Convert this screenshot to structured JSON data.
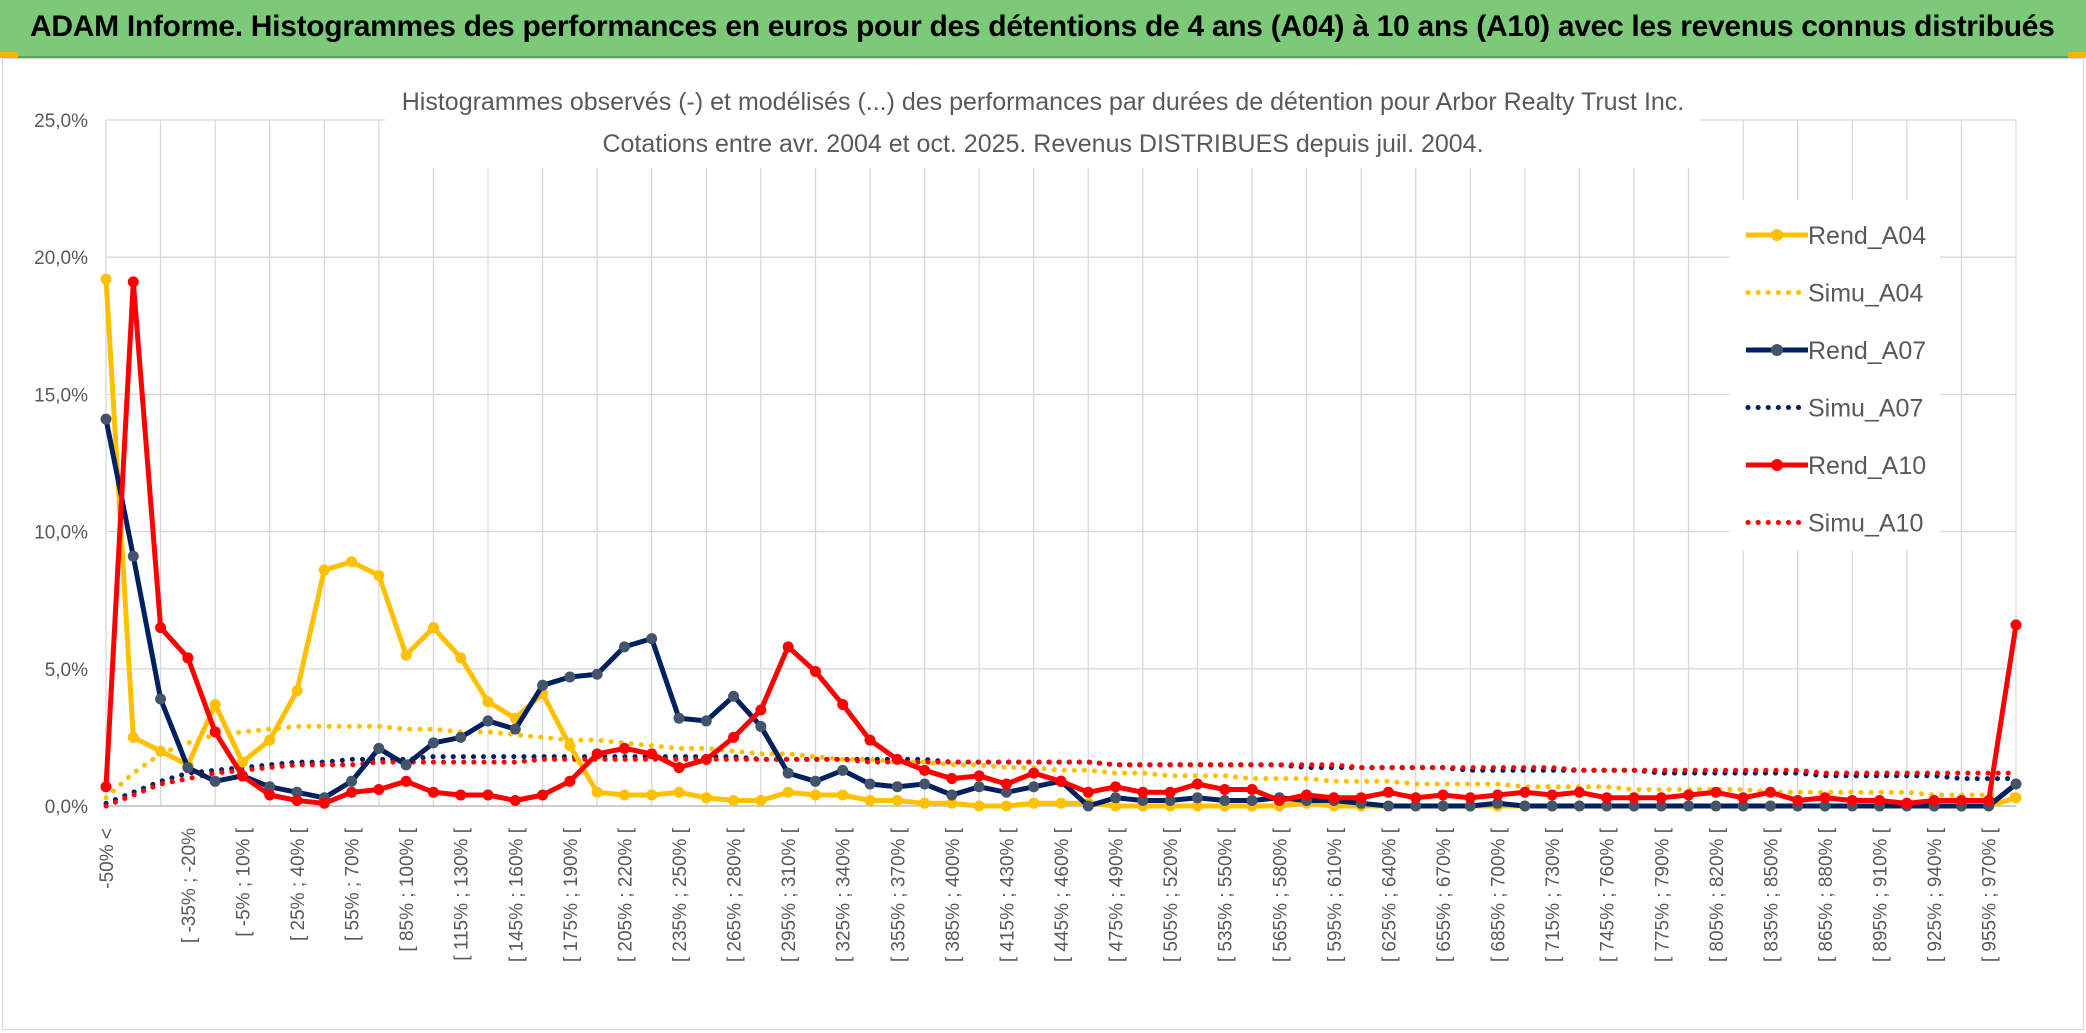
{
  "header": {
    "title": "ADAM Informe. Histogrammes des performances en euros pour des détentions de 4 ans (A04) à 10 ans (A10) avec les revenus connus distribués"
  },
  "colors": {
    "banner": "#7dc97a",
    "a04": "#FFC000",
    "a07": "#002060",
    "a10": "#FF0000",
    "grid": "#d9d9d9"
  },
  "chart_data": {
    "type": "line",
    "title": "Histogrammes observés (-) et modélisés (...) des performances par durées de détention pour Arbor Realty Trust Inc.",
    "subtitle": "Cotations entre avr. 2004 et oct. 2025. Revenus DISTRIBUES depuis juil. 2004.",
    "y_ticks": [
      "0,0%",
      "5,0%",
      "10,0%",
      "15,0%",
      "20,0%",
      "25,0%"
    ],
    "ylim": [
      0,
      25
    ],
    "x_labels": [
      "-50% <",
      "[ -35% ; -20%",
      "[ -5% ; 10% [",
      "[ 25% ; 40% [",
      "[ 55% ; 70% [",
      "[ 85% ; 100% [",
      "[ 115% ; 130% [",
      "[ 145% ; 160% [",
      "[ 175% ; 190% [",
      "[ 205% ; 220% [",
      "[ 235% ; 250% [",
      "[ 265% ; 280% [",
      "[ 295% ; 310% [",
      "[ 325% ; 340% [",
      "[ 355% ; 370% [",
      "[ 385% ; 400% [",
      "[ 415% ; 430% [",
      "[ 445% ; 460% [",
      "[ 475% ; 490% [",
      "[ 505% ; 520% [",
      "[ 535% ; 550% [",
      "[ 565% ; 580% [",
      "[ 595% ; 610% [",
      "[ 625% ; 640% [",
      "[ 655% ; 670% [",
      "[ 685% ; 700% [",
      "[ 715% ; 730% [",
      "[ 745% ; 760% [",
      "[ 775% ; 790% [",
      "[ 805% ; 820% [",
      "[ 835% ; 850% [",
      "[ 865% ; 880% [",
      "[ 895% ; 910% [",
      "[ 925% ; 940% [",
      "[ 955% ; 970% ["
    ],
    "legend_position": "right",
    "series": [
      {
        "name": "Rend_A04",
        "style": "solid",
        "color": "#FFC000",
        "values": [
          19.2,
          2.5,
          2.0,
          1.5,
          3.7,
          1.6,
          2.4,
          4.2,
          8.6,
          8.9,
          8.4,
          5.5,
          6.5,
          5.4,
          3.8,
          3.2,
          4.1,
          2.2,
          0.5,
          0.4,
          0.4,
          0.5,
          0.3,
          0.2,
          0.2,
          0.5,
          0.4,
          0.4,
          0.2,
          0.2,
          0.1,
          0.1,
          0.0,
          0.0,
          0.1,
          0.1,
          0.1,
          0.0,
          0.0,
          0.0,
          0.0,
          0.0,
          0.0,
          0.0,
          0.1,
          0.0,
          0.0,
          0.0,
          0.0,
          0.0,
          0.0,
          0.0,
          0.0,
          0.0,
          0.0,
          0.0,
          0.0,
          0.0,
          0.0,
          0.0,
          0.0,
          0.0,
          0.0,
          0.0,
          0.0,
          0.0,
          0.0,
          0.0,
          0.0,
          0.0,
          0.3
        ]
      },
      {
        "name": "Simu_A04",
        "style": "dotted",
        "color": "#FFC000",
        "values": [
          0.3,
          1.2,
          1.9,
          2.3,
          2.6,
          2.7,
          2.8,
          2.9,
          2.9,
          2.9,
          2.9,
          2.8,
          2.8,
          2.7,
          2.7,
          2.6,
          2.5,
          2.4,
          2.4,
          2.3,
          2.2,
          2.1,
          2.1,
          2.0,
          1.9,
          1.9,
          1.8,
          1.7,
          1.7,
          1.6,
          1.6,
          1.5,
          1.5,
          1.4,
          1.4,
          1.3,
          1.3,
          1.2,
          1.2,
          1.1,
          1.1,
          1.1,
          1.0,
          1.0,
          1.0,
          0.9,
          0.9,
          0.9,
          0.8,
          0.8,
          0.8,
          0.8,
          0.7,
          0.7,
          0.7,
          0.7,
          0.6,
          0.6,
          0.6,
          0.6,
          0.6,
          0.5,
          0.5,
          0.5,
          0.5,
          0.5,
          0.5,
          0.4,
          0.4,
          0.4,
          0.4
        ]
      },
      {
        "name": "Rend_A07",
        "style": "solid",
        "color": "#002060",
        "values": [
          14.1,
          9.1,
          3.9,
          1.4,
          0.9,
          1.1,
          0.7,
          0.5,
          0.3,
          0.9,
          2.1,
          1.5,
          2.3,
          2.5,
          3.1,
          2.8,
          4.4,
          4.7,
          4.8,
          5.8,
          6.1,
          3.2,
          3.1,
          4.0,
          2.9,
          1.2,
          0.9,
          1.3,
          0.8,
          0.7,
          0.8,
          0.4,
          0.7,
          0.5,
          0.7,
          0.9,
          0.0,
          0.3,
          0.2,
          0.2,
          0.3,
          0.2,
          0.2,
          0.3,
          0.2,
          0.2,
          0.1,
          0.0,
          0.0,
          0.0,
          0.0,
          0.1,
          0.0,
          0.0,
          0.0,
          0.0,
          0.0,
          0.0,
          0.0,
          0.0,
          0.0,
          0.0,
          0.0,
          0.0,
          0.0,
          0.0,
          0.0,
          0.0,
          0.0,
          0.0,
          0.8
        ]
      },
      {
        "name": "Simu_A07",
        "style": "dotted",
        "color": "#002060",
        "values": [
          0.1,
          0.5,
          0.9,
          1.2,
          1.3,
          1.4,
          1.5,
          1.6,
          1.6,
          1.7,
          1.7,
          1.7,
          1.8,
          1.8,
          1.8,
          1.8,
          1.8,
          1.8,
          1.8,
          1.8,
          1.8,
          1.8,
          1.8,
          1.8,
          1.7,
          1.7,
          1.7,
          1.7,
          1.7,
          1.7,
          1.7,
          1.6,
          1.6,
          1.6,
          1.6,
          1.6,
          1.6,
          1.5,
          1.5,
          1.5,
          1.5,
          1.5,
          1.5,
          1.5,
          1.4,
          1.4,
          1.4,
          1.4,
          1.4,
          1.4,
          1.3,
          1.3,
          1.3,
          1.3,
          1.3,
          1.3,
          1.3,
          1.2,
          1.2,
          1.2,
          1.2,
          1.2,
          1.2,
          1.1,
          1.1,
          1.1,
          1.1,
          1.1,
          1.0,
          1.0,
          1.0
        ]
      },
      {
        "name": "Rend_A10",
        "style": "solid",
        "color": "#FF0000",
        "values": [
          0.7,
          19.1,
          6.5,
          5.4,
          2.7,
          1.1,
          0.4,
          0.2,
          0.1,
          0.5,
          0.6,
          0.9,
          0.5,
          0.4,
          0.4,
          0.2,
          0.4,
          0.9,
          1.9,
          2.1,
          1.9,
          1.4,
          1.7,
          2.5,
          3.5,
          5.8,
          4.9,
          3.7,
          2.4,
          1.7,
          1.3,
          1.0,
          1.1,
          0.8,
          1.2,
          0.9,
          0.5,
          0.7,
          0.5,
          0.5,
          0.8,
          0.6,
          0.6,
          0.2,
          0.4,
          0.3,
          0.3,
          0.5,
          0.3,
          0.4,
          0.3,
          0.4,
          0.5,
          0.4,
          0.5,
          0.3,
          0.3,
          0.3,
          0.4,
          0.5,
          0.3,
          0.5,
          0.2,
          0.3,
          0.2,
          0.2,
          0.1,
          0.2,
          0.2,
          0.2,
          6.6
        ]
      },
      {
        "name": "Simu_A10",
        "style": "dotted",
        "color": "#FF0000",
        "values": [
          0.0,
          0.4,
          0.8,
          1.0,
          1.2,
          1.3,
          1.4,
          1.5,
          1.5,
          1.5,
          1.6,
          1.6,
          1.6,
          1.6,
          1.6,
          1.6,
          1.7,
          1.7,
          1.7,
          1.7,
          1.7,
          1.7,
          1.7,
          1.7,
          1.7,
          1.7,
          1.7,
          1.7,
          1.6,
          1.6,
          1.6,
          1.6,
          1.6,
          1.6,
          1.6,
          1.6,
          1.6,
          1.5,
          1.5,
          1.5,
          1.5,
          1.5,
          1.5,
          1.5,
          1.5,
          1.5,
          1.4,
          1.4,
          1.4,
          1.4,
          1.4,
          1.4,
          1.4,
          1.4,
          1.3,
          1.3,
          1.3,
          1.3,
          1.3,
          1.3,
          1.3,
          1.3,
          1.3,
          1.2,
          1.2,
          1.2,
          1.2,
          1.2,
          1.2,
          1.2,
          1.2
        ]
      }
    ]
  }
}
